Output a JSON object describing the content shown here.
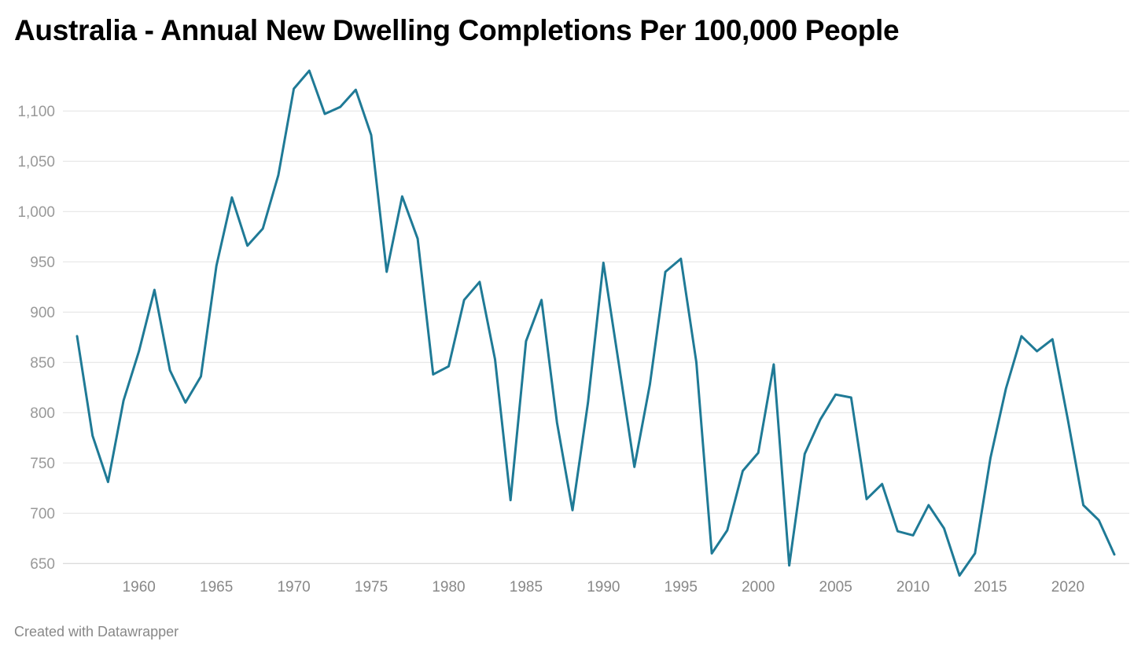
{
  "credit": "Created with Datawrapper",
  "chart_data": {
    "type": "line",
    "title": "Australia - Annual New Dwelling Completions Per 100,000 People",
    "xlabel": "",
    "ylabel": "",
    "xlim": [
      1956,
      2023
    ],
    "ylim": [
      640,
      1140
    ],
    "grid": true,
    "legend": "none",
    "line_color": "#1f7a96",
    "y_ticks": [
      650,
      700,
      750,
      800,
      850,
      900,
      950,
      1000,
      1050,
      1100
    ],
    "y_tick_labels": [
      "650",
      "700",
      "750",
      "800",
      "850",
      "900",
      "950",
      "1,000",
      "1,050",
      "1,100"
    ],
    "x_ticks": [
      1960,
      1965,
      1970,
      1975,
      1980,
      1985,
      1990,
      1995,
      2000,
      2005,
      2010,
      2015,
      2020
    ],
    "x_tick_labels": [
      "1960",
      "1965",
      "1970",
      "1975",
      "1980",
      "1985",
      "1990",
      "1995",
      "2000",
      "2005",
      "2010",
      "2015",
      "2020"
    ],
    "x": [
      1956,
      1957,
      1958,
      1959,
      1960,
      1961,
      1962,
      1963,
      1964,
      1965,
      1966,
      1967,
      1968,
      1969,
      1970,
      1971,
      1972,
      1973,
      1974,
      1975,
      1976,
      1977,
      1978,
      1979,
      1980,
      1981,
      1982,
      1983,
      1984,
      1985,
      1986,
      1987,
      1988,
      1989,
      1990,
      1991,
      1992,
      1993,
      1994,
      1995,
      1996,
      1997,
      1998,
      1999,
      2000,
      2001,
      2002,
      2003,
      2004,
      2005,
      2006,
      2007,
      2008,
      2009,
      2010,
      2011,
      2012,
      2013,
      2014,
      2015,
      2016,
      2017,
      2018,
      2019,
      2020,
      2021,
      2022,
      2023
    ],
    "values": [
      876,
      777,
      731,
      812,
      861,
      922,
      842,
      810,
      836,
      946,
      1014,
      966,
      983,
      1036,
      1122,
      1140,
      1097,
      1104,
      1121,
      1076,
      940,
      1015,
      973,
      838,
      846,
      912,
      930,
      853,
      713,
      871,
      912,
      790,
      703,
      810,
      949,
      848,
      746,
      828,
      940,
      953,
      850,
      660,
      683,
      742,
      760,
      848,
      648,
      759,
      793,
      818,
      815,
      714,
      729,
      682,
      678,
      708,
      685,
      638,
      660,
      755,
      824,
      876,
      861,
      873,
      793,
      708,
      693,
      659
    ]
  }
}
